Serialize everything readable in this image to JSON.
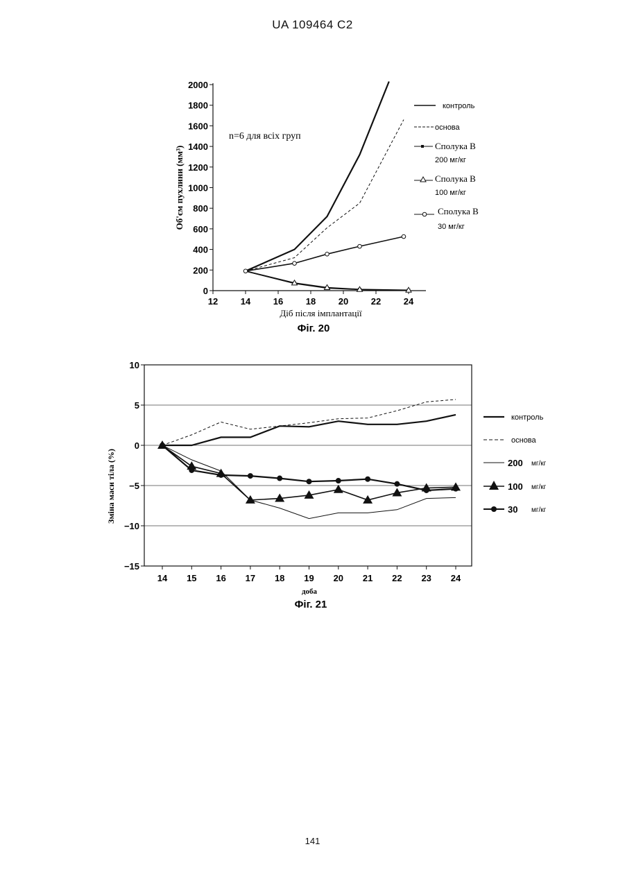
{
  "header": {
    "document_id": "UA   109464   C2"
  },
  "page_number": "141",
  "figures": {
    "fig20": {
      "caption": "Фіг. 20",
      "note": "n=6 для всіх груп",
      "legend": {
        "control": "контроль",
        "vehicle": "основа",
        "d200_name": "Сполука B",
        "d200_dose": "200 мг/кг",
        "d100_name": "Сполука B",
        "d100_dose": "100 мг/кг",
        "d30_name": "Сполука B",
        "d30_dose": "30 мг/кг"
      }
    },
    "fig21": {
      "caption": "Фіг. 21",
      "legend": {
        "control": "контроль",
        "vehicle": "основа",
        "d200": "200",
        "d100": "100",
        "d30": "30",
        "unit": "мг/кг"
      }
    }
  },
  "chart_data": [
    {
      "type": "line",
      "figure": "Фіг. 20",
      "xlabel": "Діб після імплантації",
      "ylabel": "Об'єм пухлини (мм³)",
      "xlim": [
        12,
        25
      ],
      "ylim": [
        0,
        2000
      ],
      "xticks": [
        12,
        14,
        16,
        18,
        20,
        22,
        24
      ],
      "yticks": [
        0,
        200,
        400,
        600,
        800,
        1000,
        1200,
        1400,
        1600,
        1800,
        2000
      ],
      "grid": false,
      "legend_position": "right",
      "series": [
        {
          "name": "контроль",
          "style": "solid-thick",
          "marker": "none",
          "x": [
            14,
            17,
            19,
            21,
            22.8
          ],
          "y": [
            190,
            400,
            720,
            1320,
            2030
          ]
        },
        {
          "name": "основа",
          "style": "dashed",
          "marker": "none",
          "x": [
            14,
            17,
            19,
            21,
            23.7
          ],
          "y": [
            190,
            320,
            610,
            850,
            1660
          ]
        },
        {
          "name": "Сполука B 200 мг/кг",
          "style": "solid",
          "marker": "square-filled",
          "x": [
            14,
            17,
            19,
            21,
            24
          ],
          "y": [
            190,
            70,
            25,
            10,
            2
          ]
        },
        {
          "name": "Сполука B 100 мг/кг",
          "style": "solid",
          "marker": "triangle-open",
          "x": [
            14,
            17,
            19,
            21,
            24
          ],
          "y": [
            190,
            75,
            30,
            12,
            5
          ]
        },
        {
          "name": "Сполука B 30 мг/кг",
          "style": "solid",
          "marker": "circle-open",
          "x": [
            14,
            17,
            19,
            21,
            23.7
          ],
          "y": [
            190,
            265,
            355,
            430,
            525
          ]
        }
      ]
    },
    {
      "type": "line",
      "figure": "Фіг. 21",
      "xlabel": "доба",
      "ylabel": "Зміна маси тіла (%)",
      "xlim": [
        13.5,
        24.5
      ],
      "ylim": [
        -15,
        10
      ],
      "categories": [
        14,
        15,
        16,
        17,
        18,
        19,
        20,
        21,
        22,
        23,
        24
      ],
      "yticks": [
        -15,
        -10,
        -5,
        0,
        5,
        10
      ],
      "grid": true,
      "legend_position": "right",
      "series": [
        {
          "name": "контроль",
          "style": "solid-thick",
          "marker": "none",
          "values": [
            0,
            0,
            1.0,
            1.0,
            2.4,
            2.3,
            3.0,
            2.6,
            2.6,
            3.0,
            3.8
          ]
        },
        {
          "name": "основа",
          "style": "dashed",
          "marker": "none",
          "values": [
            0,
            1.3,
            2.9,
            2.0,
            2.4,
            2.8,
            3.3,
            3.4,
            4.3,
            5.4,
            5.7
          ]
        },
        {
          "name": "200 мг/кг",
          "style": "solid-thin",
          "marker": "none",
          "values": [
            0,
            -1.8,
            -3.2,
            -6.8,
            -7.8,
            -9.1,
            -8.4,
            -8.4,
            -8.0,
            -6.6,
            -6.5
          ]
        },
        {
          "name": "100 мг/кг",
          "style": "solid",
          "marker": "triangle-filled",
          "values": [
            0,
            -2.6,
            -3.5,
            -6.8,
            -6.6,
            -6.2,
            -5.5,
            -6.8,
            -5.9,
            -5.3,
            -5.2
          ]
        },
        {
          "name": "30 мг/кг",
          "style": "solid-thick",
          "marker": "circle-filled",
          "values": [
            0,
            -3.1,
            -3.7,
            -3.8,
            -4.1,
            -4.5,
            -4.4,
            -4.2,
            -4.8,
            -5.6,
            -5.4
          ]
        }
      ]
    }
  ]
}
